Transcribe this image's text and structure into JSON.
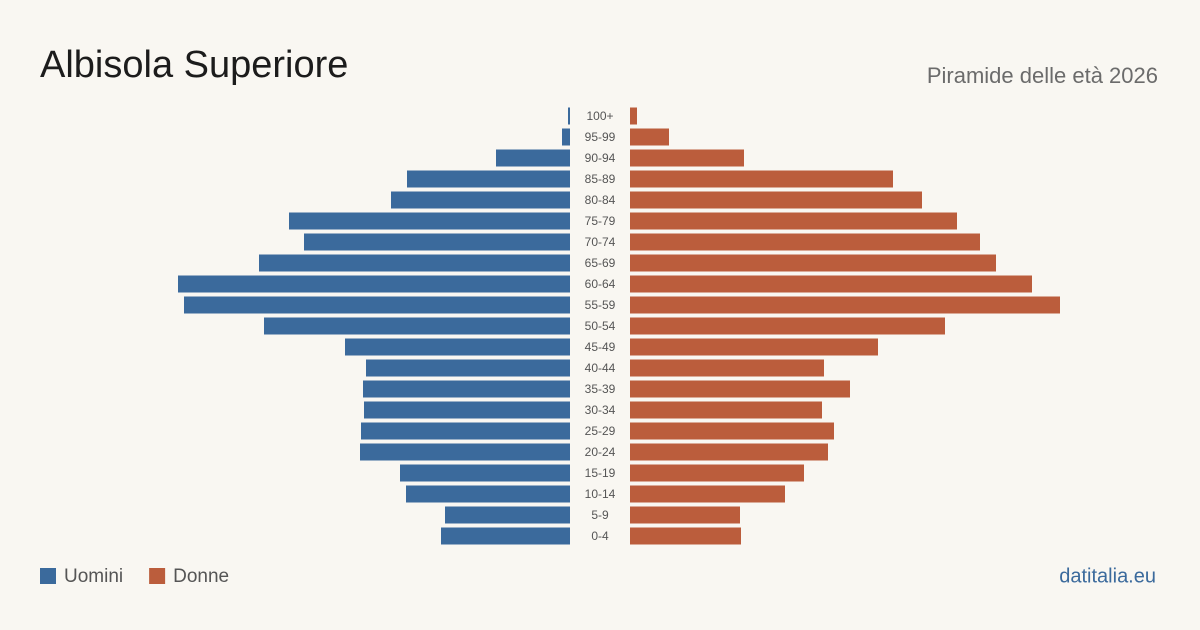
{
  "chart_data": {
    "type": "pyramid",
    "title": "Albisola Superiore",
    "subtitle": "Piramide delle età 2026",
    "source": "datitalia.eu",
    "categories": [
      "100+",
      "95-99",
      "90-94",
      "85-89",
      "80-84",
      "75-79",
      "70-74",
      "65-69",
      "60-64",
      "55-59",
      "50-54",
      "45-49",
      "40-44",
      "35-39",
      "30-34",
      "25-29",
      "20-24",
      "15-19",
      "10-14",
      "5-9",
      "0-4"
    ],
    "series": [
      {
        "name": "Uomini",
        "color": "#3b6a9c",
        "values": [
          2,
          8,
          74,
          163,
          179,
          281,
          266,
          311,
          392,
          386,
          306,
          225,
          204,
          207,
          206,
          209,
          210,
          170,
          164,
          125,
          129
        ]
      },
      {
        "name": "Donne",
        "color": "#bb5d3c",
        "values": [
          7,
          39,
          114,
          263,
          292,
          327,
          350,
          366,
          402,
          430,
          315,
          248,
          194,
          220,
          192,
          204,
          198,
          174,
          155,
          110,
          111
        ]
      }
    ]
  }
}
